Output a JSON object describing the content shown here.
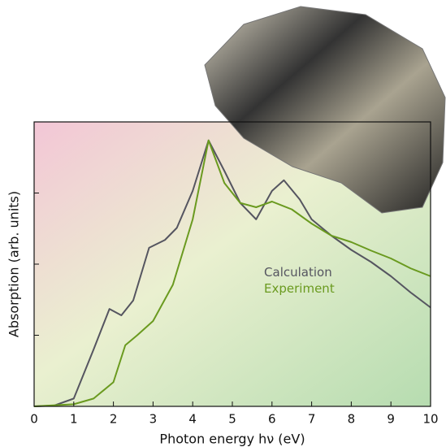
{
  "chart_data": {
    "type": "line",
    "x_label": "Photon energy hν (eV)",
    "y_label": "Absorption (arb. units)",
    "xlim": [
      0,
      10
    ],
    "xticks": [
      0,
      1,
      2,
      3,
      4,
      5,
      6,
      7,
      8,
      9,
      10
    ],
    "ylim": [
      0,
      4
    ],
    "yticks": [
      0,
      1,
      2,
      3,
      4
    ],
    "legend": "center",
    "series": [
      {
        "name": "Calculation",
        "color": "#555560",
        "x": [
          0,
          0.5,
          1.0,
          1.5,
          1.9,
          2.2,
          2.5,
          2.9,
          3.3,
          3.6,
          4.0,
          4.4,
          4.8,
          5.2,
          5.6,
          6.0,
          6.3,
          6.7,
          7.0,
          7.5,
          8.0,
          8.5,
          9.0,
          9.5,
          10.0
        ],
        "values": [
          0,
          0.01,
          0.11,
          0.8,
          1.37,
          1.28,
          1.49,
          2.23,
          2.34,
          2.51,
          3.03,
          3.74,
          3.31,
          2.86,
          2.63,
          3.03,
          3.18,
          2.91,
          2.63,
          2.4,
          2.2,
          2.03,
          1.83,
          1.6,
          1.39
        ]
      },
      {
        "name": "Experiment",
        "color": "#6a9a1f",
        "x": [
          0,
          1.0,
          1.5,
          2.0,
          2.3,
          2.6,
          3.0,
          3.5,
          4.0,
          4.4,
          4.8,
          5.2,
          5.6,
          6.0,
          6.5,
          7.0,
          7.5,
          8.0,
          8.5,
          9.0,
          9.5,
          10.0
        ],
        "values": [
          0,
          0.03,
          0.11,
          0.34,
          0.86,
          1.0,
          1.2,
          1.71,
          2.63,
          3.74,
          3.14,
          2.86,
          2.8,
          2.88,
          2.77,
          2.57,
          2.4,
          2.31,
          2.19,
          2.08,
          1.94,
          1.83
        ]
      }
    ]
  }
}
